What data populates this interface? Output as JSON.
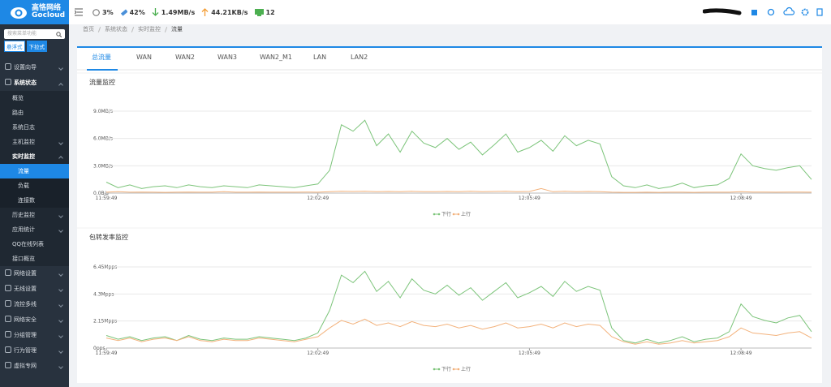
{
  "sidebar": {
    "logo": {
      "name": "高恪网络",
      "brand": "Gocloud"
    },
    "search_placeholder": "搜索菜单功能",
    "modes": [
      "悬浮式",
      "下拉式"
    ],
    "menu": [
      "设置向导",
      {
        "label": "系统状态",
        "items": [
          "概览",
          "路由",
          "系统日志",
          "主机监控",
          {
            "label": "实时监控",
            "items": [
              "流量",
              "负载",
              "连接数"
            ]
          },
          "历史监控",
          "应用统计",
          "QQ在线列表",
          "接口概览"
        ]
      },
      "网络设置",
      "无线设置",
      "流控多线",
      "网络安全",
      "分组管理",
      "行为管理",
      "虚拟专网"
    ]
  },
  "topbar": {
    "stats": [
      "3%",
      "42%",
      "1.49MB/s",
      "44.21KB/s",
      "12"
    ]
  },
  "breadcrumb": [
    "首页",
    "系统状态",
    "实时监控",
    "流量"
  ],
  "tabs": [
    "总流量",
    "WAN",
    "WAN2",
    "WAN3",
    "WAN2_M1",
    "LAN",
    "LAN2"
  ],
  "chart_data": [
    {
      "type": "line",
      "title": "流量监控",
      "categories": [
        "11:59:49",
        null,
        null,
        null,
        null,
        null,
        null,
        null,
        null,
        null,
        null,
        null,
        null,
        null,
        null,
        null,
        null,
        null,
        "12:02:49",
        null,
        null,
        null,
        null,
        null,
        null,
        null,
        null,
        null,
        null,
        null,
        null,
        null,
        null,
        null,
        null,
        null,
        "12:05:49",
        null,
        null,
        null,
        null,
        null,
        null,
        null,
        null,
        null,
        null,
        null,
        null,
        null,
        null,
        null,
        null,
        null,
        "12:08:49",
        null,
        null,
        null,
        null,
        null,
        null
      ],
      "series": [
        {
          "name": "下行",
          "color": "#7cc47a",
          "values": [
            1.2,
            0.6,
            0.9,
            0.5,
            0.7,
            0.8,
            0.6,
            0.9,
            0.7,
            0.6,
            0.8,
            0.7,
            0.6,
            0.9,
            0.8,
            0.7,
            0.6,
            0.8,
            1.0,
            2.5,
            7.5,
            6.8,
            8.0,
            5.2,
            6.5,
            4.5,
            6.8,
            5.5,
            5.0,
            6.0,
            4.8,
            5.6,
            4.2,
            5.3,
            6.5,
            4.5,
            5.0,
            5.8,
            4.6,
            6.3,
            5.2,
            5.8,
            5.4,
            1.8,
            0.8,
            0.6,
            0.9,
            0.5,
            0.7,
            1.1,
            0.6,
            0.8,
            0.9,
            1.6,
            4.3,
            3.0,
            2.7,
            2.5,
            2.8,
            3.0,
            1.5
          ]
        },
        {
          "name": "上行",
          "color": "#f3b27c",
          "values": [
            0.1,
            0.15,
            0.1,
            0.12,
            0.1,
            0.08,
            0.1,
            0.12,
            0.1,
            0.1,
            0.15,
            0.1,
            0.1,
            0.12,
            0.1,
            0.1,
            0.1,
            0.12,
            0.1,
            0.15,
            0.2,
            0.18,
            0.2,
            0.15,
            0.18,
            0.15,
            0.2,
            0.15,
            0.15,
            0.18,
            0.15,
            0.2,
            0.15,
            0.18,
            0.2,
            0.15,
            0.18,
            0.5,
            0.15,
            0.2,
            0.15,
            0.18,
            0.15,
            0.1,
            0.08,
            0.08,
            0.1,
            0.08,
            0.1,
            0.1,
            0.08,
            0.1,
            0.1,
            0.1,
            0.15,
            0.12,
            0.12,
            0.1,
            0.12,
            0.12,
            0.1
          ]
        }
      ],
      "ylim": [
        0,
        9
      ],
      "yticks": [
        {
          "value": 0,
          "label": "0.0B/s"
        },
        {
          "value": 3,
          "label": "3.0MB/s"
        },
        {
          "value": 6,
          "label": "6.0MB/s"
        },
        {
          "value": 9,
          "label": "9.0MB/s"
        }
      ],
      "grid": true,
      "legend": "bottom"
    },
    {
      "type": "line",
      "title": "包转发率监控",
      "categories": [
        "11:59:49",
        null,
        null,
        null,
        null,
        null,
        null,
        null,
        null,
        null,
        null,
        null,
        null,
        null,
        null,
        null,
        null,
        null,
        "12:02:49",
        null,
        null,
        null,
        null,
        null,
        null,
        null,
        null,
        null,
        null,
        null,
        null,
        null,
        null,
        null,
        null,
        null,
        "12:05:49",
        null,
        null,
        null,
        null,
        null,
        null,
        null,
        null,
        null,
        null,
        null,
        null,
        null,
        null,
        null,
        null,
        null,
        "12:08:49",
        null,
        null,
        null,
        null,
        null,
        null
      ],
      "series": [
        {
          "name": "下行",
          "color": "#7cc47a",
          "values": [
            1.0,
            0.7,
            0.9,
            0.6,
            0.8,
            0.9,
            0.6,
            1.0,
            0.7,
            0.6,
            0.8,
            0.7,
            0.7,
            0.9,
            0.8,
            0.7,
            0.6,
            0.8,
            1.2,
            3.0,
            5.8,
            5.2,
            6.1,
            4.5,
            5.3,
            4.0,
            5.5,
            4.6,
            4.3,
            5.0,
            4.2,
            4.8,
            3.8,
            4.5,
            5.2,
            4.0,
            4.4,
            4.9,
            4.1,
            5.3,
            4.5,
            4.9,
            4.6,
            1.6,
            0.6,
            0.4,
            0.7,
            0.4,
            0.6,
            0.9,
            0.5,
            0.7,
            0.8,
            1.3,
            3.5,
            2.5,
            2.2,
            2.0,
            2.4,
            2.6,
            1.3
          ]
        },
        {
          "name": "上行",
          "color": "#f3b27c",
          "values": [
            0.8,
            0.6,
            0.8,
            0.5,
            0.7,
            0.8,
            0.6,
            0.9,
            0.6,
            0.5,
            0.7,
            0.6,
            0.6,
            0.8,
            0.7,
            0.6,
            0.5,
            0.7,
            0.9,
            1.6,
            2.2,
            1.9,
            2.3,
            1.8,
            2.0,
            1.7,
            2.1,
            1.8,
            1.7,
            1.9,
            1.6,
            1.8,
            1.5,
            1.7,
            2.0,
            1.6,
            1.7,
            1.9,
            1.6,
            2.0,
            1.7,
            1.9,
            1.8,
            0.9,
            0.5,
            0.3,
            0.5,
            0.3,
            0.4,
            0.6,
            0.4,
            0.5,
            0.6,
            0.9,
            1.6,
            1.2,
            1.1,
            1.0,
            1.2,
            1.3,
            0.8
          ]
        }
      ],
      "ylim": [
        0,
        6.45
      ],
      "yticks": [
        {
          "value": 0,
          "label": "0pps"
        },
        {
          "value": 2.15,
          "label": "2.15Mpps"
        },
        {
          "value": 4.3,
          "label": "4.3Mpps"
        },
        {
          "value": 6.45,
          "label": "6.45Mpps"
        }
      ],
      "grid": true,
      "legend": "bottom"
    }
  ]
}
